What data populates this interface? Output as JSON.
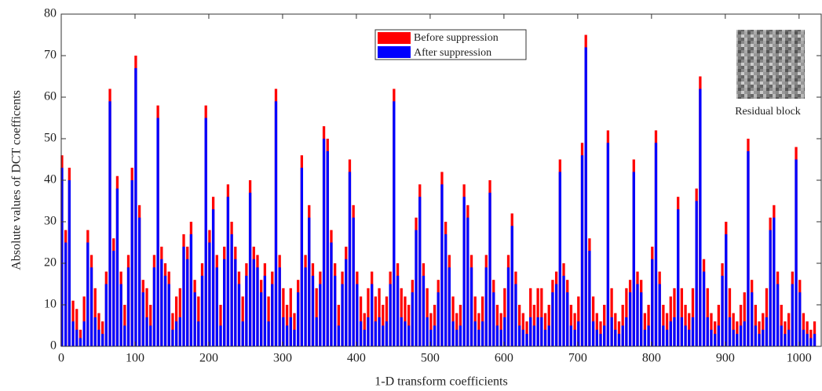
{
  "chart_data": {
    "type": "bar",
    "xlabel": "1-D transform coefficients",
    "ylabel": "Absolute values of DCT coefficents",
    "annotation": "Residual block",
    "x": [
      1,
      6,
      11,
      16,
      21,
      26,
      31,
      36,
      41,
      46,
      51,
      56,
      61,
      66,
      71,
      76,
      81,
      86,
      91,
      96,
      101,
      106,
      111,
      116,
      121,
      126,
      131,
      136,
      141,
      146,
      151,
      156,
      161,
      166,
      171,
      176,
      181,
      186,
      191,
      196,
      201,
      206,
      211,
      216,
      221,
      226,
      231,
      236,
      241,
      246,
      251,
      256,
      261,
      266,
      271,
      276,
      281,
      286,
      291,
      296,
      301,
      306,
      311,
      316,
      321,
      326,
      331,
      336,
      341,
      346,
      351,
      356,
      361,
      366,
      371,
      376,
      381,
      386,
      391,
      396,
      401,
      406,
      411,
      416,
      421,
      426,
      431,
      436,
      441,
      446,
      451,
      456,
      461,
      466,
      471,
      476,
      481,
      486,
      491,
      496,
      501,
      506,
      511,
      516,
      521,
      526,
      531,
      536,
      541,
      546,
      551,
      556,
      561,
      566,
      571,
      576,
      581,
      586,
      591,
      596,
      601,
      606,
      611,
      616,
      621,
      626,
      631,
      636,
      641,
      646,
      651,
      656,
      661,
      666,
      671,
      676,
      681,
      686,
      691,
      696,
      701,
      706,
      711,
      716,
      721,
      726,
      731,
      736,
      741,
      746,
      751,
      756,
      761,
      766,
      771,
      776,
      781,
      786,
      791,
      796,
      801,
      806,
      811,
      816,
      821,
      826,
      831,
      836,
      841,
      846,
      851,
      856,
      861,
      866,
      871,
      876,
      881,
      886,
      891,
      896,
      901,
      906,
      911,
      916,
      921,
      926,
      931,
      936,
      941,
      946,
      951,
      956,
      961,
      966,
      971,
      976,
      981,
      986,
      991,
      996,
      1001,
      1006,
      1011,
      1016,
      1021
    ],
    "series": [
      {
        "name": "Before suppression",
        "color": "#ff0000",
        "values": [
          46,
          28,
          43,
          11,
          9,
          4,
          12,
          28,
          22,
          14,
          8,
          6,
          18,
          62,
          26,
          41,
          18,
          10,
          22,
          43,
          70,
          34,
          16,
          14,
          10,
          22,
          58,
          24,
          20,
          18,
          8,
          12,
          14,
          27,
          24,
          30,
          16,
          12,
          20,
          58,
          28,
          36,
          22,
          10,
          24,
          39,
          30,
          24,
          18,
          12,
          20,
          40,
          24,
          22,
          16,
          20,
          12,
          18,
          62,
          22,
          14,
          10,
          14,
          8,
          16,
          46,
          22,
          34,
          20,
          14,
          18,
          53,
          50,
          28,
          20,
          10,
          18,
          24,
          45,
          34,
          18,
          12,
          8,
          14,
          18,
          12,
          14,
          10,
          12,
          18,
          62,
          20,
          14,
          12,
          10,
          16,
          31,
          39,
          20,
          14,
          8,
          10,
          16,
          42,
          30,
          22,
          12,
          8,
          10,
          39,
          34,
          22,
          12,
          8,
          12,
          22,
          40,
          16,
          10,
          8,
          14,
          22,
          32,
          18,
          10,
          8,
          6,
          14,
          10,
          14,
          14,
          8,
          10,
          16,
          18,
          45,
          20,
          16,
          10,
          8,
          12,
          49,
          75,
          26,
          12,
          8,
          6,
          10,
          52,
          14,
          8,
          6,
          10,
          14,
          16,
          45,
          18,
          16,
          8,
          10,
          24,
          52,
          18,
          10,
          8,
          12,
          14,
          36,
          14,
          10,
          8,
          14,
          38,
          65,
          21,
          14,
          8,
          6,
          10,
          20,
          30,
          14,
          8,
          6,
          10,
          13,
          50,
          16,
          10,
          6,
          8,
          14,
          31,
          34,
          18,
          10,
          6,
          8,
          18,
          48,
          16,
          8,
          6,
          4,
          6
        ]
      },
      {
        "name": "After suppression",
        "color": "#0000ff",
        "values": [
          43,
          25,
          40,
          6,
          4,
          2,
          6,
          25,
          19,
          7,
          4,
          3,
          15,
          59,
          23,
          38,
          15,
          5,
          19,
          40,
          67,
          31,
          13,
          7,
          5,
          19,
          55,
          21,
          17,
          15,
          4,
          6,
          7,
          24,
          21,
          27,
          13,
          6,
          17,
          55,
          25,
          33,
          19,
          5,
          21,
          36,
          27,
          21,
          15,
          6,
          17,
          37,
          21,
          19,
          13,
          17,
          6,
          15,
          59,
          19,
          7,
          5,
          7,
          4,
          13,
          43,
          19,
          31,
          17,
          7,
          15,
          50,
          47,
          25,
          17,
          5,
          15,
          21,
          42,
          31,
          15,
          6,
          4,
          7,
          15,
          6,
          7,
          5,
          6,
          15,
          59,
          17,
          7,
          6,
          5,
          13,
          28,
          36,
          17,
          7,
          4,
          5,
          13,
          39,
          27,
          19,
          6,
          4,
          5,
          36,
          31,
          19,
          6,
          4,
          6,
          19,
          37,
          13,
          5,
          4,
          7,
          19,
          29,
          15,
          5,
          4,
          3,
          7,
          5,
          7,
          7,
          4,
          5,
          13,
          15,
          42,
          17,
          13,
          5,
          4,
          6,
          46,
          72,
          23,
          6,
          4,
          3,
          5,
          49,
          7,
          4,
          3,
          5,
          7,
          13,
          42,
          15,
          13,
          4,
          5,
          21,
          49,
          15,
          5,
          4,
          6,
          7,
          33,
          7,
          5,
          4,
          7,
          35,
          62,
          18,
          7,
          4,
          3,
          5,
          17,
          27,
          7,
          4,
          3,
          5,
          6,
          47,
          13,
          5,
          3,
          4,
          7,
          28,
          31,
          15,
          5,
          3,
          4,
          15,
          45,
          13,
          4,
          3,
          2,
          3
        ]
      }
    ],
    "xlim": [
      0,
      1030
    ],
    "ylim": [
      0,
      80
    ],
    "xticks": [
      0,
      100,
      200,
      300,
      400,
      500,
      600,
      700,
      800,
      900,
      1000
    ],
    "yticks": [
      0,
      10,
      20,
      30,
      40,
      50,
      60,
      70,
      80
    ]
  }
}
